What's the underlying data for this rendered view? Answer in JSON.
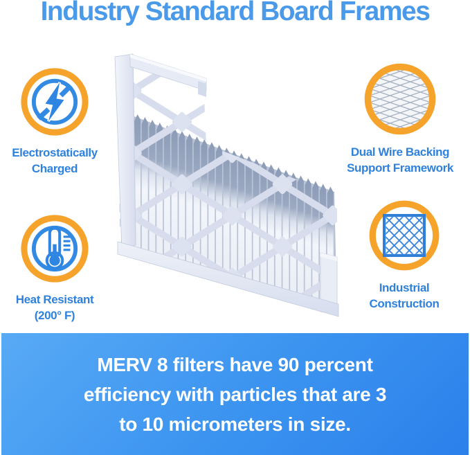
{
  "title": {
    "text": "Industry Standard Board Frames"
  },
  "features": [
    {
      "name": "electrostatically-charged",
      "icon": "lightning-bolt-icon",
      "lines": [
        "Electrostatically",
        "Charged"
      ]
    },
    {
      "name": "dual-wire-backing",
      "icon": "wire-mesh-icon",
      "lines": [
        "Dual Wire Backing",
        "Support Framework"
      ]
    },
    {
      "name": "heat-resistant",
      "icon": "thermometer-icon",
      "lines": [
        "Heat Resistant",
        "(200° F)"
      ]
    },
    {
      "name": "industrial-construction",
      "icon": "lattice-grid-icon",
      "lines": [
        "Industrial",
        "Construction"
      ]
    }
  ],
  "hero_image": {
    "name": "pleated-air-filter"
  },
  "banner": {
    "lines": [
      "MERV 8 filters have 90 percent",
      "efficiency with particles that are 3",
      "to 10 micrometers in size."
    ]
  },
  "colors": {
    "title_blue": "#4a9ae9",
    "caption_blue": "#2e82dd",
    "accent_orange": "#f6a32c",
    "icon_blue": "#338ae3",
    "banner_gradient_start": "#58aaf5",
    "banner_gradient_end": "#2c80ea",
    "banner_text": "#ffffff"
  }
}
